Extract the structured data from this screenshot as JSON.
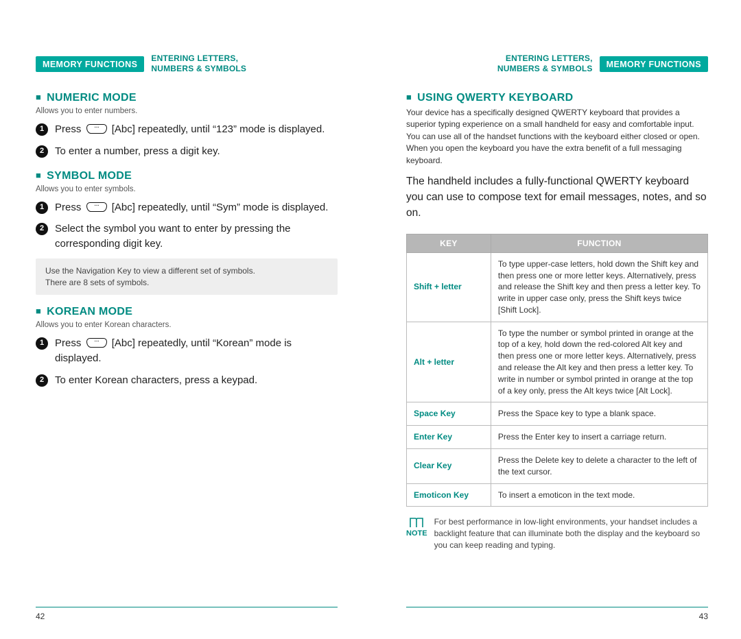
{
  "chapter_label": "MEMORY FUNCTIONS",
  "section_mini_line1": "ENTERING LETTERS,",
  "section_mini_line2": "NUMBERS & SYMBOLS",
  "left": {
    "numeric": {
      "title": "NUMERIC MODE",
      "sub": "Allows you to enter numbers.",
      "step1a": "Press",
      "step1b": "[Abc] repeatedly, until “123” mode is displayed.",
      "step2": "To enter a number, press a digit key."
    },
    "symbol": {
      "title": "SYMBOL MODE",
      "sub": "Allows you to enter symbols.",
      "step1a": "Press",
      "step1b": "[Abc] repeatedly, until “Sym” mode is displayed.",
      "step2": "Select the symbol you want to enter by pressing the corresponding digit key.",
      "info1": "Use the Navigation Key to view a different set of symbols.",
      "info2": "There are 8 sets of symbols."
    },
    "korean": {
      "title": "KOREAN MODE",
      "sub": "Allows you to enter Korean characters.",
      "step1a": "Press",
      "step1b": "[Abc] repeatedly, until “Korean” mode is displayed.",
      "step2": "To enter Korean characters, press a keypad."
    },
    "pagenum": "42"
  },
  "right": {
    "qwerty": {
      "title": "USING QWERTY KEYBOARD",
      "desc": "Your device has a specifically designed QWERTY keyboard that provides a superior typing experience on a small handheld for easy and comfortable input. You can use all of the handset functions with the keyboard either closed or open. When you open the keyboard you have the extra benefit of a full messaging keyboard.",
      "body": "The handheld includes a fully-functional QWERTY keyboard you can use to compose text for email messages, notes, and so on."
    },
    "table": {
      "col_key": "KEY",
      "col_func": "FUNCTION",
      "rows": [
        {
          "key": "Shift + letter",
          "func": "To type upper-case letters, hold down the Shift key and then press one or more letter keys. Alternatively, press and release the Shift key and then press a letter key. To write in upper case only, press the Shift keys twice [Shift Lock]."
        },
        {
          "key": "Alt + letter",
          "func": "To type the number or symbol printed in orange at the top of a key, hold down the red-colored Alt key and then press one or more letter keys. Alternatively, press and release the Alt key and then press a letter key. To write in number or symbol printed in orange at the top of a key only, press the Alt keys twice [Alt Lock]."
        },
        {
          "key": "Space Key",
          "func": "Press the Space key to type a blank space."
        },
        {
          "key": "Enter Key",
          "func": "Press the Enter key to insert a carriage return."
        },
        {
          "key": "Clear Key",
          "func": "Press the Delete key to delete a character to the left of the text cursor."
        },
        {
          "key": "Emoticon Key",
          "func": "To insert a emoticon in the text mode."
        }
      ]
    },
    "note_label": "NOTE",
    "note_text": "For best performance in low-light environments, your handset includes a backlight feature that can illuminate both the display and the keyboard so you can keep reading and typing.",
    "pagenum": "43"
  }
}
